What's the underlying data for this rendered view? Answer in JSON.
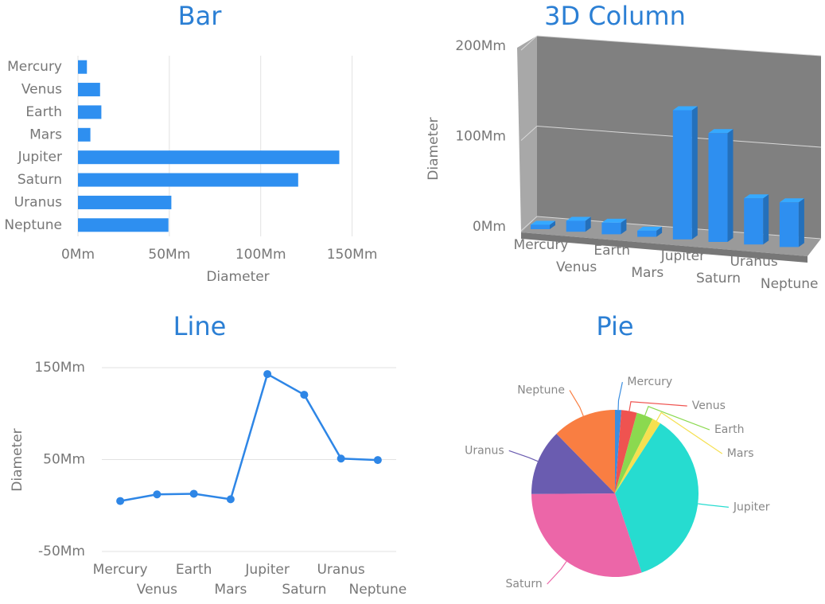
{
  "chart_data": [
    {
      "type": "bar",
      "title": "Bar",
      "categories": [
        "Mercury",
        "Venus",
        "Earth",
        "Mars",
        "Jupiter",
        "Saturn",
        "Uranus",
        "Neptune"
      ],
      "values": [
        4.9,
        12.1,
        12.8,
        6.8,
        143,
        120.5,
        51.1,
        49.5
      ],
      "color": "#2e8ff0",
      "xlabel": "Diameter",
      "xlim": [
        0,
        175
      ],
      "xticks": [
        {
          "value": 0,
          "label": "0Mm"
        },
        {
          "value": 50,
          "label": "50Mm"
        },
        {
          "value": 100,
          "label": "100Mm"
        },
        {
          "value": 150,
          "label": "150Mm"
        }
      ],
      "grid": true
    },
    {
      "type": "column3d",
      "title": "3D Column",
      "categories": [
        "Mercury",
        "Venus",
        "Earth",
        "Mars",
        "Jupiter",
        "Saturn",
        "Uranus",
        "Neptune"
      ],
      "values": [
        4.9,
        12.1,
        12.8,
        6.8,
        143,
        120.5,
        51.1,
        49.5
      ],
      "color": "#2e8ff0",
      "ylabel": "Diameter",
      "ylim": [
        0,
        200
      ],
      "yticks": [
        {
          "value": 0,
          "label": "0Mm"
        },
        {
          "value": 100,
          "label": "100Mm"
        },
        {
          "value": 200,
          "label": "200Mm"
        }
      ],
      "grid": true
    },
    {
      "type": "line",
      "title": "Line",
      "categories": [
        "Mercury",
        "Venus",
        "Earth",
        "Mars",
        "Jupiter",
        "Saturn",
        "Uranus",
        "Neptune"
      ],
      "values": [
        4.9,
        12.1,
        12.8,
        6.8,
        143,
        120.5,
        51.1,
        49.5
      ],
      "color": "#2e86e6",
      "ylabel": "Diameter",
      "ylim": [
        -50,
        150
      ],
      "yticks": [
        {
          "value": -50,
          "label": "-50Mm"
        },
        {
          "value": 50,
          "label": "50Mm"
        },
        {
          "value": 150,
          "label": "150Mm"
        }
      ],
      "grid": true
    },
    {
      "type": "pie",
      "title": "Pie",
      "categories": [
        "Mercury",
        "Venus",
        "Earth",
        "Mars",
        "Jupiter",
        "Saturn",
        "Uranus",
        "Neptune"
      ],
      "values": [
        4.9,
        12.1,
        12.8,
        6.8,
        143,
        120.5,
        51.1,
        49.5
      ],
      "colors": [
        "#3b8ee0",
        "#ef5350",
        "#8bd94f",
        "#f5e050",
        "#26dcd0",
        "#ec66a8",
        "#6a5cb0",
        "#f97e42"
      ]
    }
  ]
}
